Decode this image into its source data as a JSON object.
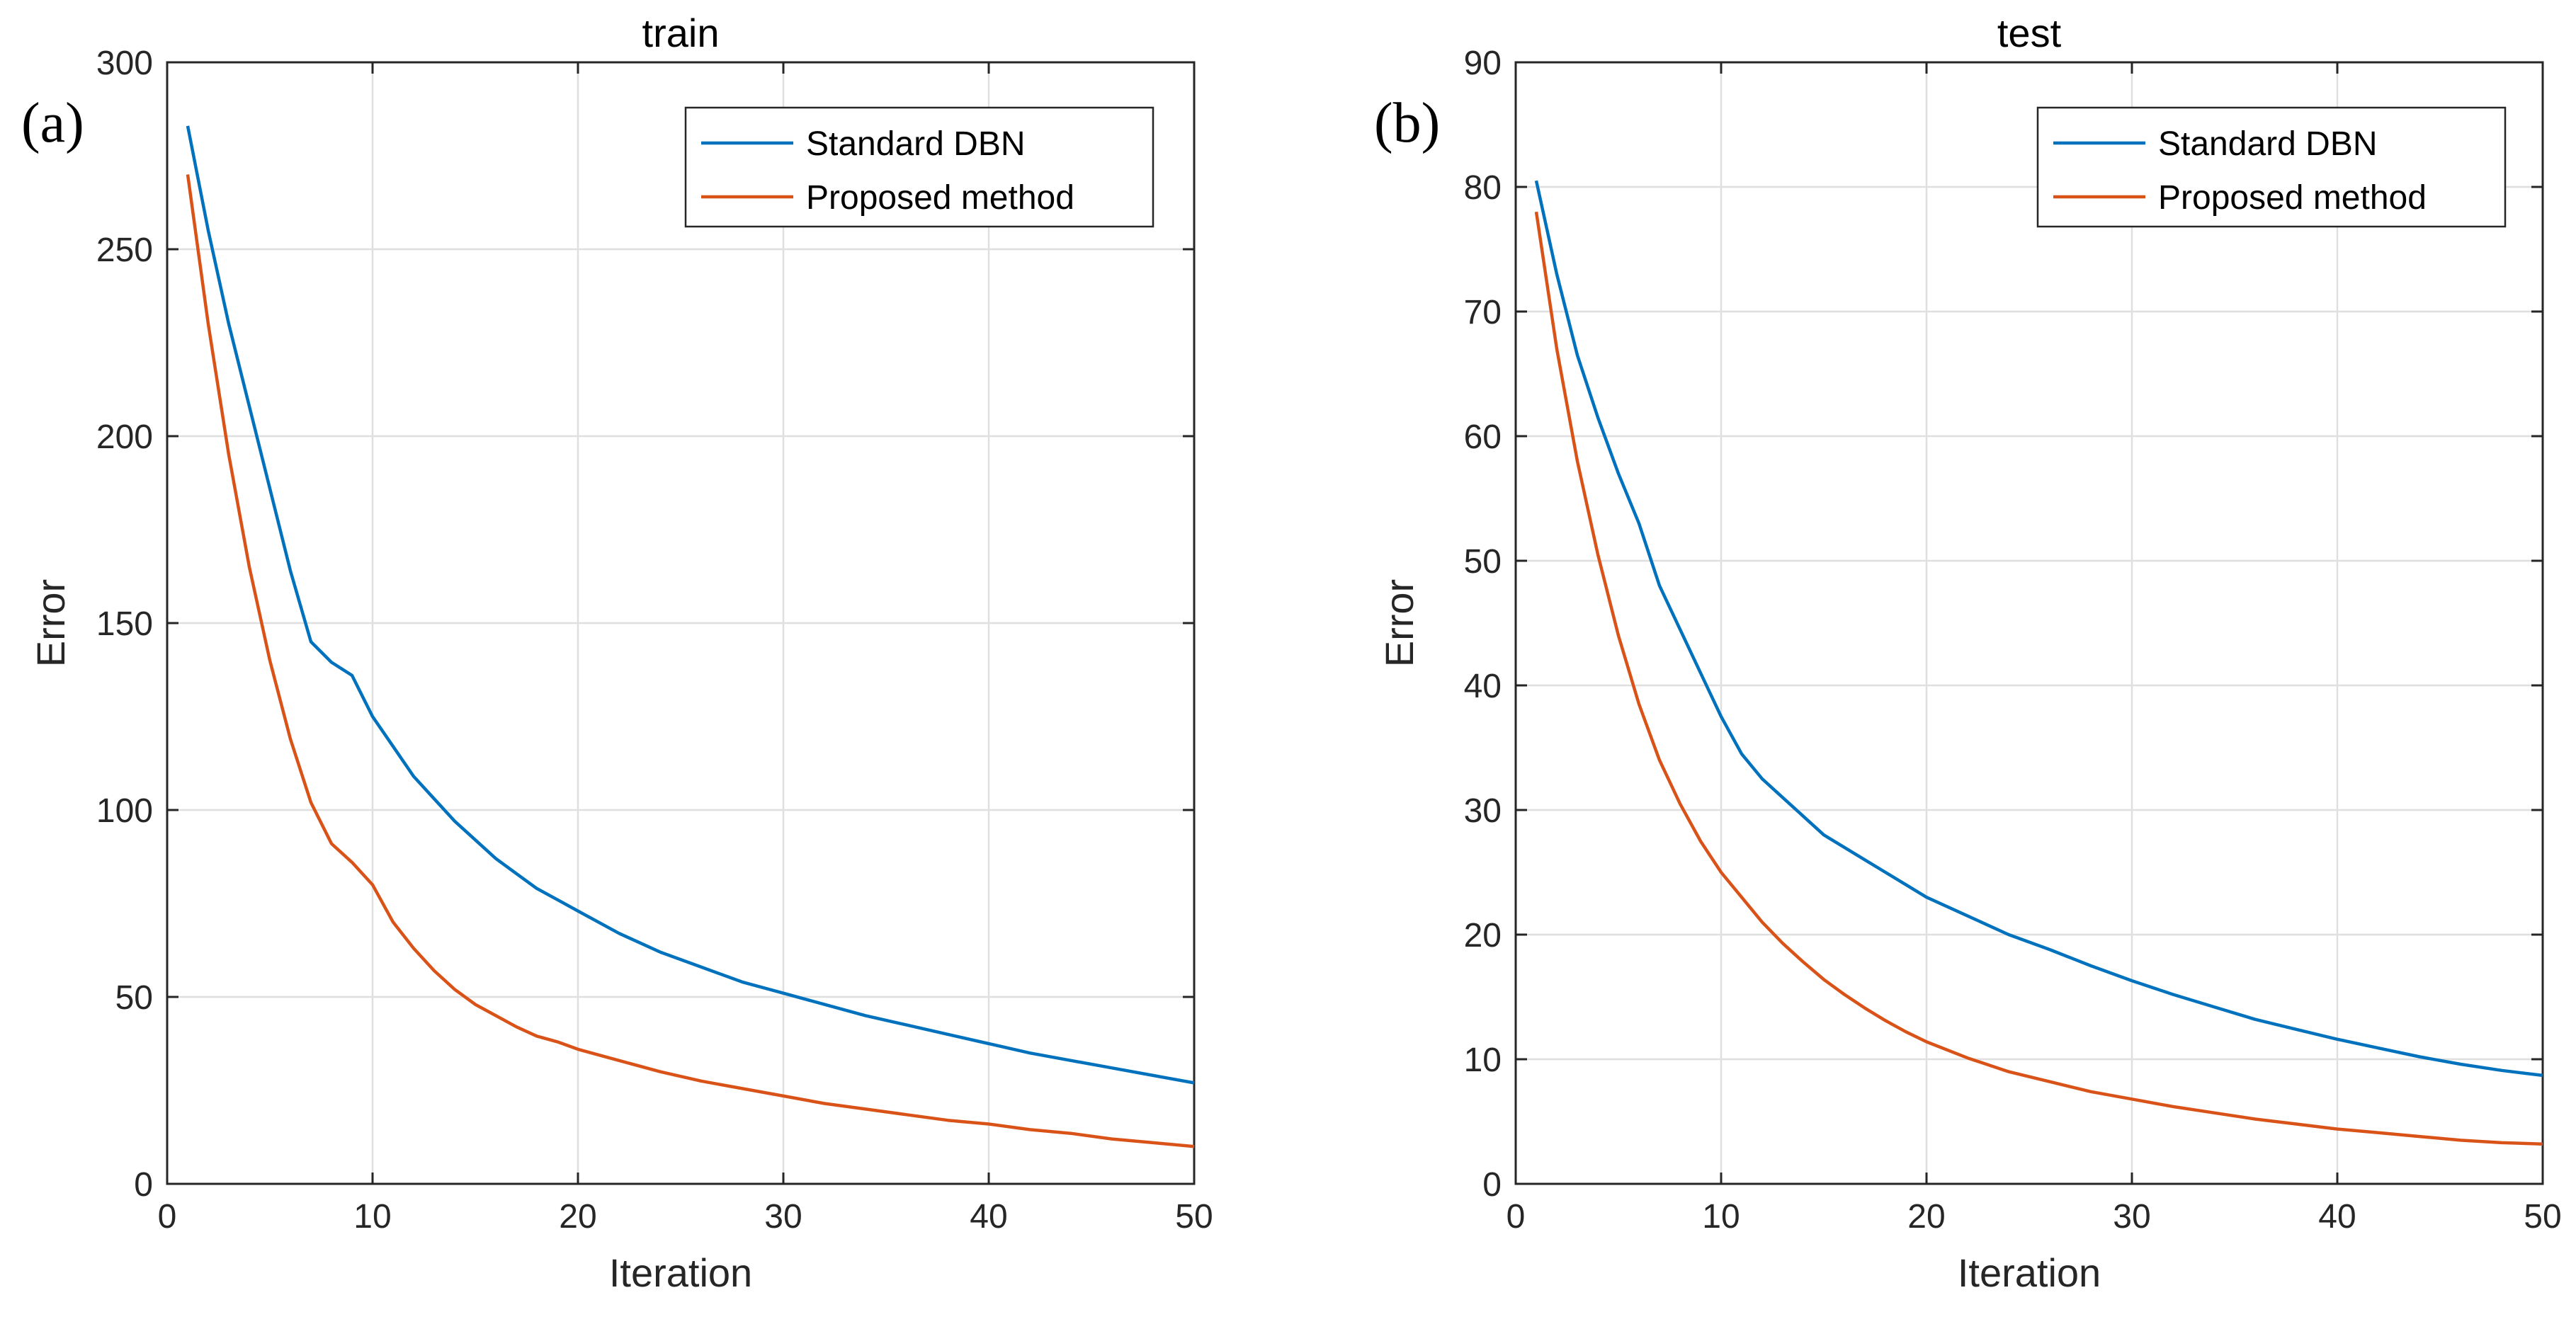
{
  "chart_data": [
    {
      "panel_label": "(a)",
      "type": "line",
      "title": "train",
      "xlabel": "Iteration",
      "ylabel": "Error",
      "xlim": [
        0,
        50
      ],
      "ylim": [
        0,
        300
      ],
      "xticks": [
        "0",
        "10",
        "20",
        "30",
        "40",
        "50"
      ],
      "yticks": [
        "0",
        "50",
        "100",
        "150",
        "200",
        "250",
        "300"
      ],
      "grid": true,
      "legend_position": "top-right",
      "x": [
        1,
        2,
        3,
        4,
        5,
        6,
        7,
        8,
        9,
        10,
        11,
        12,
        13,
        14,
        15,
        16,
        17,
        18,
        19,
        20,
        22,
        24,
        26,
        28,
        30,
        32,
        34,
        36,
        38,
        40,
        42,
        44,
        46,
        48,
        50
      ],
      "series": [
        {
          "name": "Standard DBN",
          "color": "#0072BD",
          "values": [
            283,
            255,
            230,
            208,
            186,
            164,
            145,
            139.5,
            136,
            125,
            117,
            109,
            103,
            97,
            92,
            87,
            83,
            79,
            76,
            73,
            67,
            62,
            58,
            54,
            51,
            48,
            45,
            42.5,
            40,
            37.5,
            35,
            33,
            31,
            29,
            27
          ]
        },
        {
          "name": "Proposed method",
          "color": "#D95319",
          "values": [
            270,
            230,
            195,
            165,
            140,
            119,
            102,
            91,
            86,
            80,
            70,
            63,
            57,
            52,
            48,
            45,
            42,
            39.5,
            38,
            36,
            33,
            30,
            27.5,
            25.5,
            23.5,
            21.5,
            20,
            18.5,
            17,
            16,
            14.5,
            13.5,
            12,
            11,
            10
          ]
        }
      ]
    },
    {
      "panel_label": "(b)",
      "type": "line",
      "title": "test",
      "xlabel": "Iteration",
      "ylabel": "Error",
      "xlim": [
        0,
        50
      ],
      "ylim": [
        0,
        90
      ],
      "xticks": [
        "0",
        "10",
        "20",
        "30",
        "40",
        "50"
      ],
      "yticks": [
        "0",
        "10",
        "20",
        "30",
        "40",
        "50",
        "60",
        "70",
        "80",
        "90"
      ],
      "grid": true,
      "legend_position": "top-right",
      "x": [
        1,
        2,
        3,
        4,
        5,
        6,
        7,
        8,
        9,
        10,
        11,
        12,
        13,
        14,
        15,
        16,
        17,
        18,
        19,
        20,
        22,
        24,
        26,
        28,
        30,
        32,
        34,
        36,
        38,
        40,
        42,
        44,
        46,
        48,
        50
      ],
      "series": [
        {
          "name": "Standard DBN",
          "color": "#0072BD",
          "values": [
            80.5,
            73,
            66.5,
            61.5,
            57,
            53,
            48,
            44.5,
            41,
            37.5,
            34.5,
            32.5,
            31,
            29.5,
            28,
            27,
            26,
            25,
            24,
            23,
            21.5,
            20,
            18.8,
            17.5,
            16.3,
            15.2,
            14.2,
            13.2,
            12.4,
            11.6,
            10.9,
            10.2,
            9.6,
            9.1,
            8.7
          ]
        },
        {
          "name": "Proposed method",
          "color": "#D95319",
          "values": [
            78,
            67,
            58,
            50.5,
            44,
            38.5,
            34,
            30.5,
            27.5,
            25,
            23,
            21,
            19.3,
            17.8,
            16.4,
            15.2,
            14.1,
            13.1,
            12.2,
            11.4,
            10.1,
            9,
            8.2,
            7.4,
            6.8,
            6.2,
            5.7,
            5.2,
            4.8,
            4.4,
            4.1,
            3.8,
            3.5,
            3.3,
            3.2
          ]
        }
      ]
    }
  ]
}
